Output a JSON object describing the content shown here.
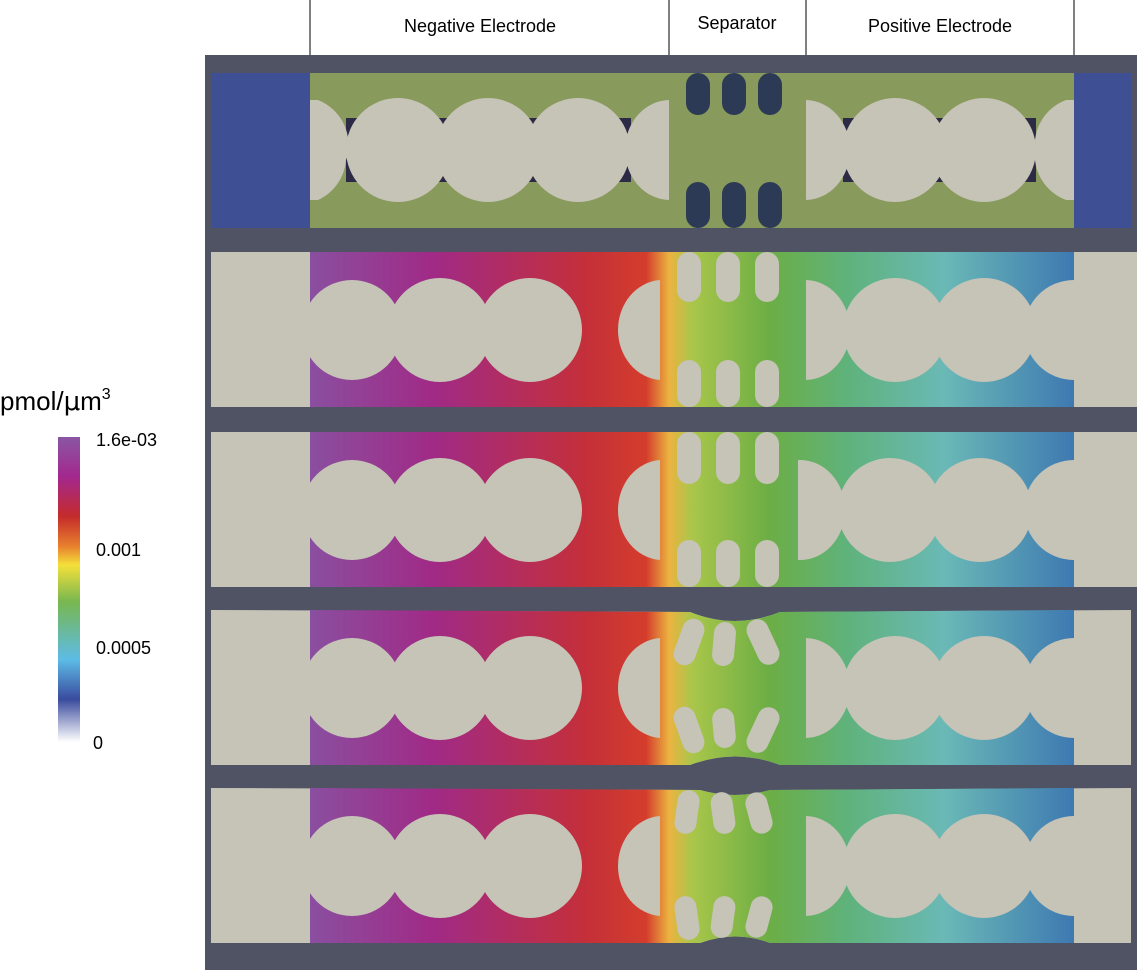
{
  "regions": {
    "negative": "Negative Electrode",
    "separator": "Separator",
    "positive": "Positive Electrode"
  },
  "legend": {
    "unit_prefix": "pmol/",
    "unit_mu": "μ",
    "unit_m": "m",
    "unit_exp": "3",
    "ticks": [
      "1.6e-03",
      "0.001",
      "0.0005",
      "0"
    ]
  },
  "colors": {
    "frame": "#4f5364",
    "particle": "#c6c3b7",
    "collector": "#3f4f94",
    "electrolyte_top": "#889a5c",
    "pore": "#2c2a45",
    "separator_post": "#2c3a55"
  },
  "colormap": [
    "#ffffff",
    "#3a4b9e",
    "#5dbbe6",
    "#78b750",
    "#f4e03a",
    "#e8822e",
    "#c42b2b",
    "#9a2a8e",
    "#8a56a4"
  ]
}
